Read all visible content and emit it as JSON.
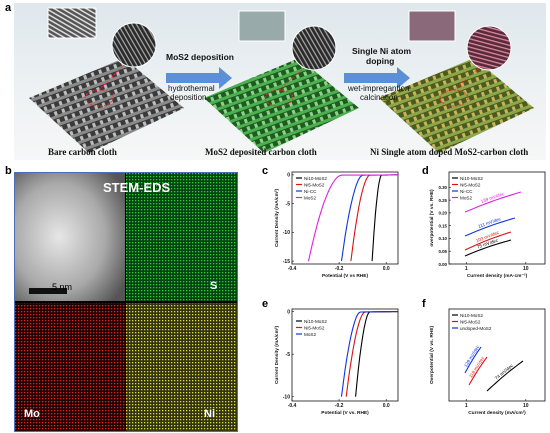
{
  "panel_a": {
    "letter": "a",
    "steps": [
      {
        "label": "Bare carbon cloth",
        "color": "#2b2b2b"
      },
      {
        "label": "MoS2 deposited carbon cloth",
        "color": "#2e7d2e"
      },
      {
        "label": "Ni Single atom doped MoS2-carbon cloth",
        "color": "#7a6a2a"
      }
    ],
    "arrow1": {
      "title": "MoS2 deposition",
      "line1": "hydrothermal",
      "line2": "deposition"
    },
    "arrow2": {
      "title": "Single Ni atom",
      "title2": "doping",
      "line1": "wet-impregantion",
      "line2": "calcination"
    }
  },
  "panel_b": {
    "letter": "b",
    "title": "STEM-EDS",
    "scale": "5 nm",
    "maps": [
      {
        "element": "S",
        "color": "#22aa22"
      },
      {
        "element": "Mo",
        "color": "#cc1111"
      },
      {
        "element": "Ni",
        "color": "#cccc22"
      }
    ]
  },
  "chart_data": [
    {
      "letter": "c",
      "type": "line",
      "xlabel": "Potential (V vs RHE)",
      "ylabel": "Current Density (mA/cm²)",
      "xlim": [
        -0.4,
        0.05
      ],
      "ylim": [
        -15.5,
        0.5
      ],
      "xticks": [
        "-0.4",
        "-0.2",
        "0.0"
      ],
      "yticks": [
        "0",
        "-5",
        "-10",
        "-15"
      ],
      "series": [
        {
          "name": "Ni10-MoS2",
          "color": "#000000",
          "onset": -0.02,
          "x15": -0.06
        },
        {
          "name": "Ni5-MoS2",
          "color": "#dd1111",
          "onset": -0.07,
          "x15": -0.15
        },
        {
          "name": "Ni-CC",
          "color": "#1133dd",
          "onset": -0.1,
          "x15": -0.19
        },
        {
          "name": "MoS2",
          "color": "#dd22dd",
          "onset": -0.19,
          "x15": -0.33
        }
      ]
    },
    {
      "letter": "d",
      "type": "line",
      "xlabel": "Current density (mA·cm⁻²)",
      "ylabel": "overpotential (V vs. RHE)",
      "ylim": [
        0.0,
        0.36
      ],
      "yticks": [
        "0.30",
        "0.25",
        "0.20",
        "0.15",
        "0.10",
        "0.05",
        "0.00"
      ],
      "xscale": "log",
      "xticks": [
        "1",
        "10"
      ],
      "series": [
        {
          "name": "Ni10-MoS2",
          "color": "#000000",
          "tafel": "75 mV/dec",
          "y_start": 0.02,
          "y_end": 0.12
        },
        {
          "name": "Ni5-MoS2",
          "color": "#dd1111",
          "tafel": "103 mV/dec",
          "y_start": 0.05,
          "y_end": 0.16
        },
        {
          "name": "Ni-CC",
          "color": "#1133dd",
          "tafel": "111 mV/dec",
          "y_start": 0.1,
          "y_end": 0.22
        },
        {
          "name": "MoS2",
          "color": "#dd22dd",
          "tafel": "139 mV/dec",
          "y_start": 0.18,
          "y_end": 0.33
        }
      ]
    },
    {
      "letter": "e",
      "type": "line",
      "xlabel": "Potential (V vs. RHE)",
      "ylabel": "Current Density (mA/cm²)",
      "xlim": [
        -0.4,
        0.05
      ],
      "ylim": [
        -10.5,
        0.3
      ],
      "xticks": [
        "-0.4",
        "-0.2",
        "0.0"
      ],
      "yticks": [
        "0",
        "-5",
        "-10"
      ],
      "series": [
        {
          "name": "Ni10-MoS2",
          "color": "#000000",
          "onset": -0.07,
          "x10": -0.13
        },
        {
          "name": "Ni5-MoS2",
          "color": "#dd1111",
          "onset": -0.09,
          "x10": -0.17
        },
        {
          "name": "MoS2",
          "color": "#1133dd",
          "onset": -0.11,
          "x10": -0.19
        }
      ]
    },
    {
      "letter": "f",
      "type": "line",
      "xlabel": "Current density (mA/cm²)",
      "ylabel": "Overpotential (V vs. RHE)",
      "xscale": "log",
      "xticks": [
        "1",
        "10"
      ],
      "series": [
        {
          "name": "Ni10-MoS2",
          "color": "#000000",
          "tafel": "74 mV/dec"
        },
        {
          "name": "Ni5-MoS2",
          "color": "#dd1111",
          "tafel": "118 mV/dec"
        },
        {
          "name": "undoped-MoS2",
          "color": "#1133dd",
          "tafel": "139 mV/dec"
        }
      ]
    }
  ]
}
